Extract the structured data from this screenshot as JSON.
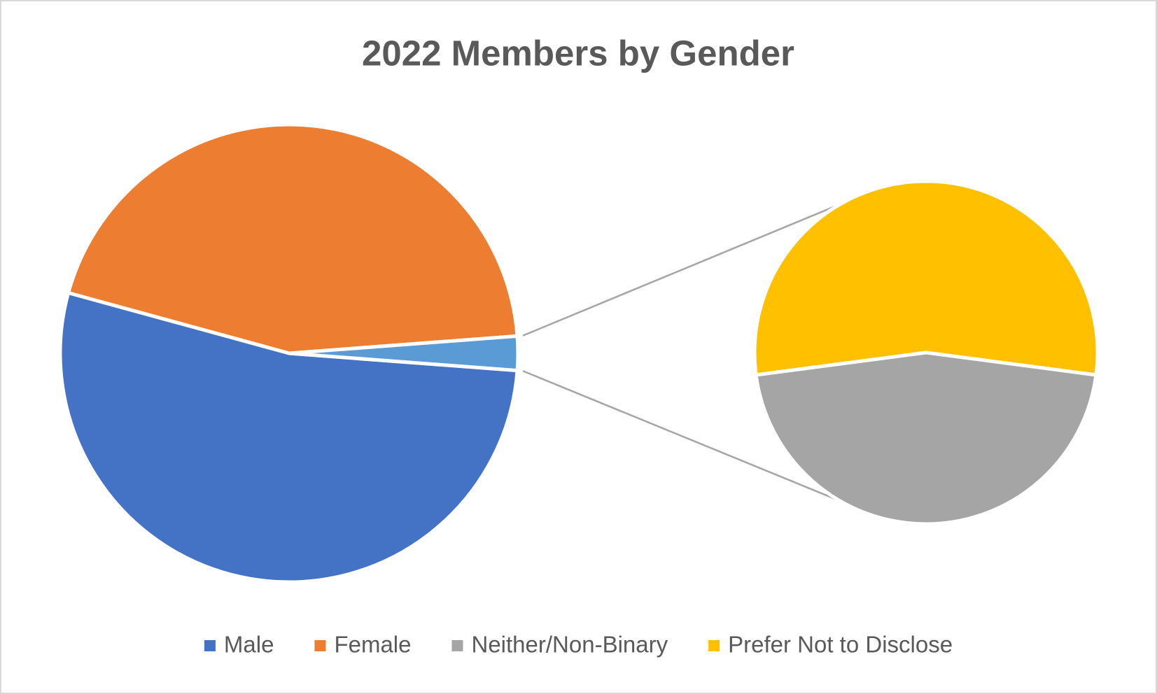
{
  "chart_data": {
    "type": "pie-of-pie",
    "title": "2022 Members by Gender",
    "series": [
      {
        "name": "Male",
        "color": "#4472c4",
        "value": 53
      },
      {
        "name": "Female",
        "color": "#ed7d31",
        "value": 44.5
      },
      {
        "name": "Neither/Non-Binary",
        "color": "#a5a5a5",
        "value": 1.1
      },
      {
        "name": "Prefer Not to Disclose",
        "color": "#ffc000",
        "value": 1.3
      }
    ],
    "secondary_count": 2,
    "split_color": "#5b9bd5",
    "legend": "bottom"
  }
}
